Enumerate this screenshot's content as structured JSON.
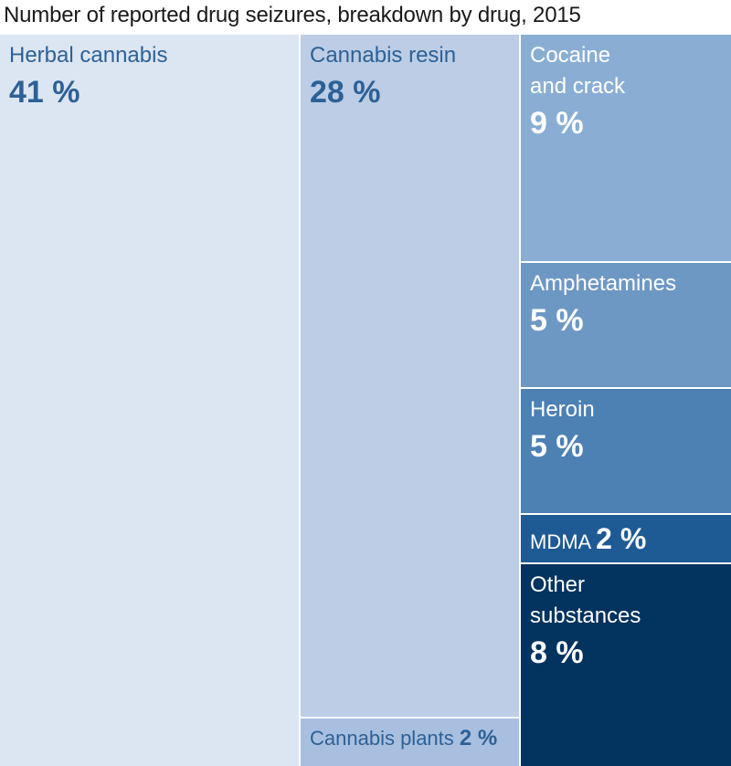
{
  "chart_data": {
    "type": "treemap",
    "title": "Number of reported drug seizures, breakdown by drug, 2015",
    "unit": "%",
    "items": [
      {
        "label": "Herbal cannabis",
        "value": 41,
        "display": "41 %",
        "color": "#dce6f3",
        "text_color": "#2d6196"
      },
      {
        "label": "Cannabis resin",
        "value": 28,
        "display": "28 %",
        "color": "#bccde5",
        "text_color": "#2d6196"
      },
      {
        "label": "Cannabis plants",
        "value": 2,
        "display": "2 %",
        "color": "#a8bfdf",
        "text_color": "#2d6196"
      },
      {
        "label": "Cocaine and crack",
        "value": 9,
        "display": "9 %",
        "color": "#8aaed3",
        "text_color": "#ffffff"
      },
      {
        "label": "Amphetamines",
        "value": 5,
        "display": "5 %",
        "color": "#6e98c4",
        "text_color": "#ffffff"
      },
      {
        "label": "Heroin",
        "value": 5,
        "display": "5 %",
        "color": "#4d80b3",
        "text_color": "#ffffff"
      },
      {
        "label": "MDMA",
        "value": 2,
        "display": "2 %",
        "color": "#1e5a93",
        "text_color": "#ffffff"
      },
      {
        "label": "Other substances",
        "value": 8,
        "display": "8 %",
        "color": "#03335f",
        "text_color": "#ffffff"
      }
    ]
  }
}
